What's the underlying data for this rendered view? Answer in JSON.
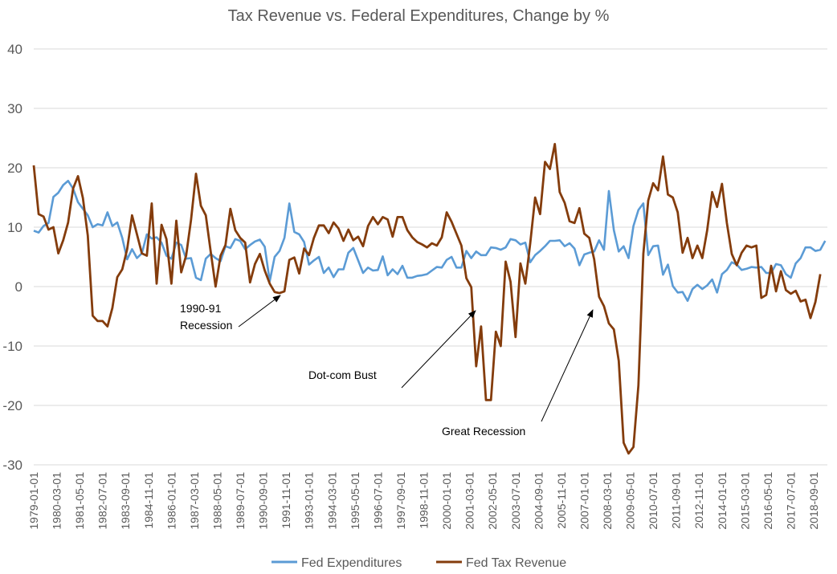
{
  "chart_data": {
    "type": "line",
    "title": "Tax Revenue vs. Federal Expenditures, Change by %",
    "xlabel": "",
    "ylabel": "",
    "ylim": [
      -30,
      40
    ],
    "y_ticks": [
      -30,
      -20,
      -10,
      0,
      10,
      20,
      30,
      40
    ],
    "y_tick_labels": [
      "-30",
      "-20",
      "-10",
      "0",
      "10",
      "20",
      "30",
      "40"
    ],
    "grid": true,
    "legend": "bottom",
    "x_start": "1979-01-01",
    "x_tick_labels": [
      "1979-01-01",
      "1980-03-01",
      "1981-05-01",
      "1982-07-01",
      "1983-09-01",
      "1984-11-01",
      "1986-01-01",
      "1987-03-01",
      "1988-05-01",
      "1989-07-01",
      "1990-09-01",
      "1991-11-01",
      "1993-01-01",
      "1994-03-01",
      "1995-05-01",
      "1996-07-01",
      "1997-09-01",
      "1998-11-01",
      "2000-01-01",
      "2001-03-01",
      "2002-05-01",
      "2003-07-01",
      "2004-09-01",
      "2005-11-01",
      "2007-01-01",
      "2008-03-01",
      "2009-05-01",
      "2010-07-01",
      "2011-09-01",
      "2012-11-01",
      "2014-01-01",
      "2015-03-01",
      "2016-05-01",
      "2017-07-01",
      "2018-09-01"
    ],
    "series": [
      {
        "name": "Fed Expenditures",
        "color": "#5b9bd5",
        "frequency": "quarterly",
        "values": [
          9.4,
          9.1,
          10.2,
          10.7,
          15.1,
          15.8,
          17.1,
          17.8,
          16.5,
          14.2,
          13.1,
          12.0,
          10.0,
          10.5,
          10.3,
          12.5,
          10.2,
          10.8,
          8.2,
          4.6,
          6.3,
          4.8,
          5.6,
          8.8,
          8.1,
          8.3,
          7.4,
          5.2,
          4.7,
          7.4,
          7.0,
          4.7,
          4.8,
          1.5,
          1.1,
          4.7,
          5.5,
          4.8,
          4.3,
          6.8,
          6.5,
          8.0,
          7.7,
          6.3,
          7.0,
          7.6,
          7.9,
          6.7,
          0.9,
          5.0,
          6.0,
          8.2,
          14.0,
          9.2,
          8.8,
          7.5,
          3.7,
          4.4,
          5.0,
          2.3,
          3.2,
          1.6,
          2.9,
          2.9,
          5.7,
          6.5,
          4.4,
          2.3,
          3.2,
          2.7,
          2.8,
          5.1,
          1.9,
          2.9,
          2.1,
          3.5,
          1.5,
          1.5,
          1.8,
          1.9,
          2.1,
          2.7,
          3.3,
          3.2,
          4.5,
          5.0,
          3.2,
          3.2,
          6.0,
          4.8,
          5.9,
          5.3,
          5.3,
          6.6,
          6.5,
          6.2,
          6.6,
          8.0,
          7.8,
          7.1,
          7.4,
          4.1,
          5.3,
          6.0,
          6.8,
          7.7,
          7.7,
          7.8,
          6.8,
          7.3,
          6.4,
          3.6,
          5.4,
          5.7,
          5.9,
          7.8,
          6.2,
          16.1,
          9.5,
          5.9,
          6.8,
          4.8,
          10.2,
          12.9,
          14.0,
          5.3,
          6.8,
          6.9,
          2.0,
          3.7,
          0.1,
          -1.0,
          -0.9,
          -2.4,
          -0.4,
          0.3,
          -0.4,
          0.2,
          1.2,
          -1.0,
          2.1,
          2.8,
          4.1,
          3.7,
          2.8,
          3.0,
          3.3,
          3.2,
          3.3,
          2.3,
          2.3,
          3.8,
          3.6,
          2.1,
          1.5,
          3.9,
          4.8,
          6.6,
          6.6,
          6.0,
          6.2,
          7.7
        ]
      },
      {
        "name": "Fed Tax Revenue",
        "color": "#843c0c",
        "frequency": "quarterly",
        "values": [
          20.4,
          12.2,
          11.8,
          9.6,
          10.0,
          5.6,
          7.8,
          10.8,
          16.5,
          18.6,
          14.9,
          8.6,
          -4.9,
          -5.8,
          -5.8,
          -6.7,
          -3.6,
          1.6,
          2.9,
          6.3,
          12.0,
          8.8,
          5.6,
          5.2,
          14.0,
          0.5,
          10.4,
          8.0,
          0.5,
          11.1,
          2.4,
          5.2,
          11.2,
          19.0,
          13.6,
          12.0,
          5.9,
          0.0,
          5.2,
          7.0,
          13.1,
          9.5,
          8.2,
          7.4,
          0.7,
          3.8,
          5.5,
          2.7,
          0.5,
          -0.9,
          -1.1,
          -0.8,
          4.5,
          4.9,
          2.2,
          6.4,
          5.3,
          8.2,
          10.3,
          10.3,
          9.0,
          10.8,
          9.8,
          7.7,
          9.6,
          7.8,
          8.4,
          6.8,
          10.2,
          11.7,
          10.5,
          11.7,
          11.3,
          8.4,
          11.7,
          11.7,
          9.5,
          8.3,
          7.5,
          7.1,
          6.6,
          7.3,
          6.9,
          8.3,
          12.5,
          10.9,
          8.9,
          6.9,
          1.4,
          -0.1,
          -13.4,
          -6.7,
          -19.1,
          -19.1,
          -7.6,
          -10.0,
          4.2,
          0.8,
          -8.5,
          3.9,
          0.5,
          7.3,
          15.0,
          12.2,
          21.0,
          19.8,
          24.0,
          15.9,
          14.1,
          11.0,
          10.7,
          13.2,
          8.9,
          8.2,
          4.6,
          -1.7,
          -3.3,
          -6.2,
          -7.2,
          -12.5,
          -26.3,
          -28.1,
          -27.0,
          -16.6,
          5.5,
          14.5,
          17.4,
          16.2,
          21.9,
          15.5,
          15.0,
          12.5,
          5.7,
          8.2,
          4.8,
          6.9,
          4.8,
          9.5,
          15.9,
          13.4,
          17.3,
          10.7,
          5.5,
          3.6,
          5.7,
          6.9,
          6.6,
          6.9,
          -1.9,
          -1.4,
          3.5,
          -0.8,
          2.6,
          -0.6,
          -1.2,
          -0.7,
          -2.5,
          -2.2,
          -5.3,
          -2.6,
          2.1
        ]
      }
    ],
    "annotations": [
      {
        "lines": [
          "1990-91",
          "Recession"
        ],
        "points_to": "1990-91"
      },
      {
        "lines": [
          "Dot-com Bust"
        ],
        "points_to": "2001"
      },
      {
        "lines": [
          "Great Recession"
        ],
        "points_to": "2008"
      }
    ],
    "gridline_color": "#d9d9d9",
    "text_color": "#595959"
  }
}
